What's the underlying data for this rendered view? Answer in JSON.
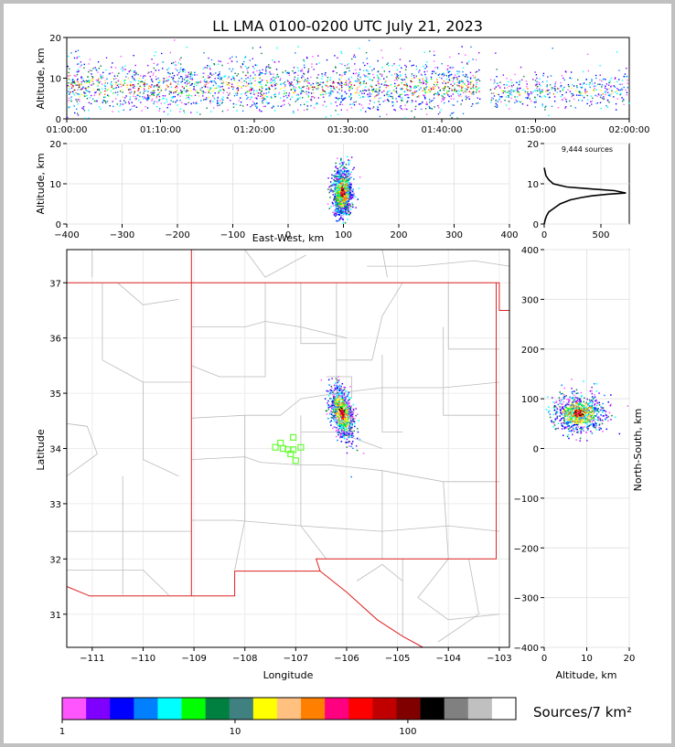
{
  "title": "LL LMA 0100-0200 UTC July 21, 2023",
  "chart_data": [
    {
      "panel": "altitude-time",
      "type": "scatter",
      "ylabel": "Altitude, km",
      "ylim": [
        0,
        20
      ],
      "yticks": [
        "0",
        "10",
        "20"
      ],
      "xticks": [
        "01:00:00",
        "01:10:00",
        "01:20:00",
        "01:30:00",
        "01:40:00",
        "01:50:00",
        "02:00:00"
      ],
      "xlim_minutes": [
        0,
        60
      ],
      "density": [
        {
          "min_start": 0,
          "min_end": 44,
          "alt_center": 8,
          "alt_spread": 3,
          "level": "high"
        },
        {
          "min_start": 45,
          "min_end": 60,
          "alt_center": 7,
          "alt_spread": 2,
          "level": "low"
        }
      ]
    },
    {
      "panel": "altitude-eastwest",
      "type": "scatter",
      "xlabel": "East-West, km",
      "ylabel": "Altitude, km",
      "xlim": [
        -400,
        400
      ],
      "ylim": [
        0,
        20
      ],
      "xticks": [
        "−400",
        "−300",
        "−200",
        "−100",
        "0",
        "100",
        "200",
        "300",
        "400"
      ],
      "yticks": [
        "0",
        "10",
        "20"
      ],
      "cluster": {
        "x_center": 97,
        "x_spread": 14,
        "alt_center": 8,
        "alt_spread": 3
      }
    },
    {
      "panel": "altitude-histogram",
      "type": "line",
      "annotation": "9,444 sources",
      "xlim": [
        0,
        750
      ],
      "ylim": [
        0,
        20
      ],
      "xticks": [
        "0",
        "500"
      ],
      "yticks": [
        "0",
        "10",
        "20"
      ],
      "profile": [
        [
          0,
          0
        ],
        [
          8,
          1
        ],
        [
          20,
          2
        ],
        [
          40,
          3
        ],
        [
          90,
          4
        ],
        [
          140,
          5
        ],
        [
          230,
          6
        ],
        [
          330,
          6.6
        ],
        [
          420,
          7
        ],
        [
          560,
          7.4
        ],
        [
          720,
          7.7
        ],
        [
          620,
          8.3
        ],
        [
          420,
          8.7
        ],
        [
          200,
          9.2
        ],
        [
          80,
          10
        ],
        [
          40,
          11
        ],
        [
          15,
          12
        ],
        [
          0,
          14
        ]
      ]
    },
    {
      "panel": "plan-view",
      "type": "scatter",
      "xlabel": "Longitude",
      "ylabel": "Latitude",
      "xlim": [
        -111.5,
        -102.8
      ],
      "ylim": [
        30.4,
        37.6
      ],
      "xticks": [
        "−111",
        "−110",
        "−109",
        "−108",
        "−107",
        "−106",
        "−105",
        "−104",
        "−103"
      ],
      "yticks": [
        "31",
        "32",
        "33",
        "34",
        "35",
        "36",
        "37"
      ],
      "cluster": {
        "lon_center": -106.1,
        "lon_spread": 0.15,
        "lat_center": 34.65,
        "lat_spread": 0.3
      },
      "stations": [
        [
          -107.05,
          34.2
        ],
        [
          -107.3,
          34.1
        ],
        [
          -107.4,
          34.02
        ],
        [
          -107.25,
          34.0
        ],
        [
          -107.15,
          33.98
        ],
        [
          -107.05,
          33.98
        ],
        [
          -106.9,
          34.02
        ],
        [
          -107.1,
          33.9
        ],
        [
          -107.0,
          33.78
        ]
      ]
    },
    {
      "panel": "northsouth-altitude",
      "type": "scatter",
      "xlabel": "Altitude, km",
      "ylabel": "North-South, km",
      "xlim": [
        0,
        20
      ],
      "ylim": [
        -400,
        400
      ],
      "xticks": [
        "0",
        "10",
        "20"
      ],
      "yticks": [
        "−400",
        "−300",
        "−200",
        "−100",
        "0",
        "100",
        "200",
        "300",
        "400"
      ],
      "cluster": {
        "alt_center": 8,
        "alt_spread": 3,
        "ns_center": 72,
        "ns_spread": 30
      }
    }
  ],
  "colorbar": {
    "label": "Sources/7 km²",
    "ticks": [
      "1",
      "10",
      "100"
    ],
    "colors": [
      "#ff55ff",
      "#8000ff",
      "#0000ff",
      "#0080ff",
      "#00ffff",
      "#00ff00",
      "#008040",
      "#408080",
      "#ffff00",
      "#ffc080",
      "#ff8000",
      "#ff0080",
      "#ff0000",
      "#c00000",
      "#800000",
      "#000000",
      "#808080",
      "#c0c0c0",
      "#ffffff"
    ]
  }
}
